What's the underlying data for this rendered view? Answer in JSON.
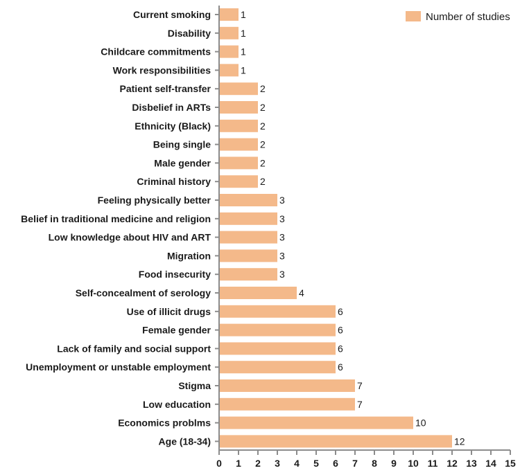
{
  "chart_data": {
    "type": "bar",
    "orientation": "horizontal",
    "title": "",
    "xlabel": "",
    "ylabel": "",
    "xlim": [
      0,
      15
    ],
    "x_ticks": [
      "0",
      "1",
      "2",
      "3",
      "4",
      "5",
      "6",
      "7",
      "8",
      "9",
      "10",
      "11",
      "12",
      "13",
      "14",
      "15"
    ],
    "grid": false,
    "legend_position": "top-right",
    "categories": [
      "Current smoking",
      "Disability",
      "Childcare commitments",
      "Work responsibilities",
      "Patient self-transfer",
      "Disbelief in ARTs",
      "Ethnicity (Black)",
      "Being single",
      "Male gender",
      "Criminal history ",
      "Feeling physically better",
      "Belief in traditional medicine and religion",
      "Low knowledge about HIV and ART",
      "Migration",
      "Food insecurity",
      "Self-concealment of serology",
      "Use of illicit drugs",
      "Female gender",
      "Lack of family and social support",
      "Unemployment or unstable employment",
      "Stigma",
      "Low education",
      "Economics problms",
      "Age (18-34)"
    ],
    "series": [
      {
        "name": "Number of studies",
        "color": "#f4b98a",
        "values": [
          1,
          1,
          1,
          1,
          2,
          2,
          2,
          2,
          2,
          2,
          3,
          3,
          3,
          3,
          3,
          4,
          6,
          6,
          6,
          6,
          7,
          7,
          10,
          12
        ],
        "value_labels": [
          "1",
          "1",
          "1",
          "1",
          "2",
          "2",
          "2",
          "2",
          "2",
          "2",
          "3",
          "3",
          "3",
          "3",
          "3",
          "4",
          "6",
          "6",
          "6",
          "6",
          "7",
          "7",
          "10",
          "12"
        ]
      }
    ]
  },
  "colors": {
    "bar": "#f4b98a",
    "axis": "#8c8c8c",
    "text": "#1a1a1a"
  }
}
